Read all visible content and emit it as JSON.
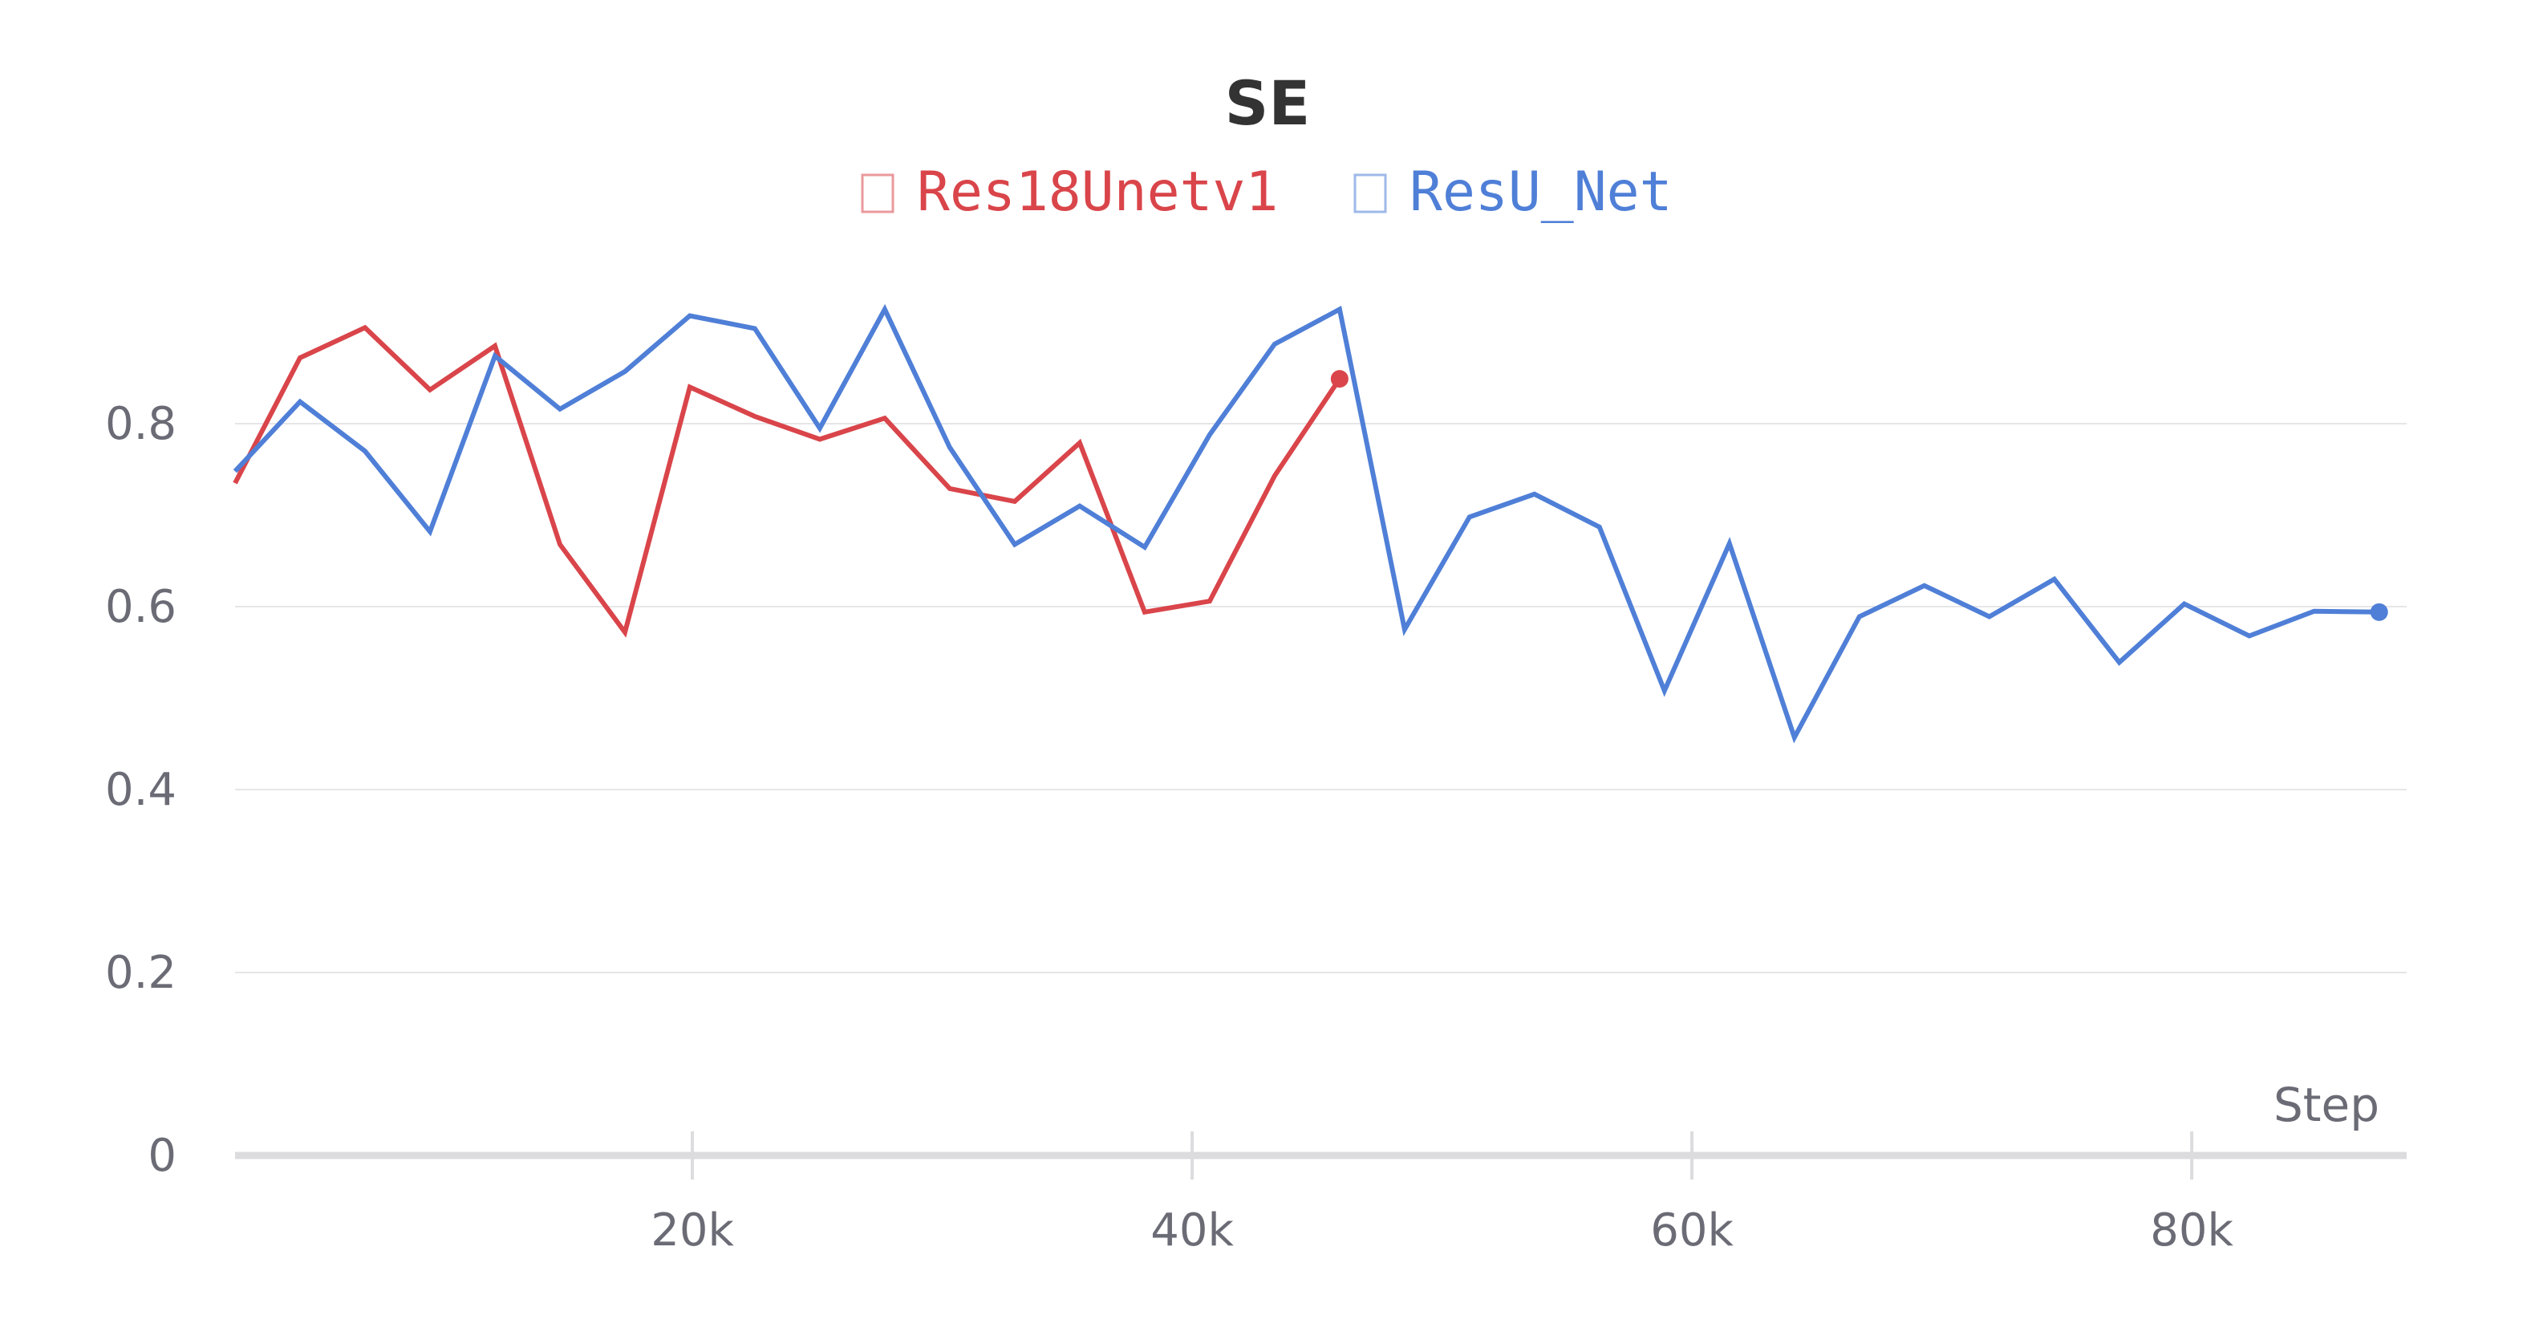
{
  "chart_data": {
    "type": "line",
    "title": "SE",
    "xlabel": "Step",
    "ylabel": "",
    "xlim": [
      1700,
      88600
    ],
    "ylim": [
      0,
      1.0
    ],
    "x_ticks": [
      20000,
      40000,
      60000,
      80000
    ],
    "x_tick_labels": [
      "20k",
      "40k",
      "60k",
      "80k"
    ],
    "y_ticks": [
      0,
      0.2,
      0.4,
      0.6,
      0.8
    ],
    "y_tick_labels": [
      "0",
      "0.2",
      "0.4",
      "0.6",
      "0.8"
    ],
    "grid": true,
    "legend_position": "top-center",
    "series": [
      {
        "name": "Res18Unetv1",
        "color": "#d9454a",
        "x": [
          1700,
          4300,
          6900,
          9500,
          12100,
          14700,
          17300,
          19900,
          22500,
          25100,
          27700,
          30300,
          32900,
          35500,
          38100,
          40700,
          43300,
          45900
        ],
        "y": [
          0.735,
          0.872,
          0.905,
          0.837,
          0.885,
          0.668,
          0.572,
          0.84,
          0.808,
          0.783,
          0.806,
          0.729,
          0.715,
          0.779,
          0.594,
          0.606,
          0.743,
          0.849
        ]
      },
      {
        "name": "ResU_Net",
        "color": "#4f7fd7",
        "x": [
          1700,
          4300,
          6900,
          9500,
          12100,
          14700,
          17300,
          19900,
          22500,
          25100,
          27700,
          30300,
          32900,
          35500,
          38100,
          40700,
          43300,
          45900,
          48500,
          51100,
          53700,
          56300,
          58900,
          61500,
          64100,
          66700,
          69300,
          71900,
          74500,
          77100,
          79700,
          82300,
          84900,
          87500
        ],
        "y": [
          0.748,
          0.824,
          0.77,
          0.682,
          0.874,
          0.816,
          0.857,
          0.918,
          0.904,
          0.795,
          0.925,
          0.774,
          0.668,
          0.71,
          0.665,
          0.788,
          0.887,
          0.925,
          0.575,
          0.698,
          0.723,
          0.687,
          0.508,
          0.669,
          0.457,
          0.589,
          0.623,
          0.589,
          0.63,
          0.539,
          0.603,
          0.568,
          0.595,
          0.594
        ]
      }
    ]
  }
}
